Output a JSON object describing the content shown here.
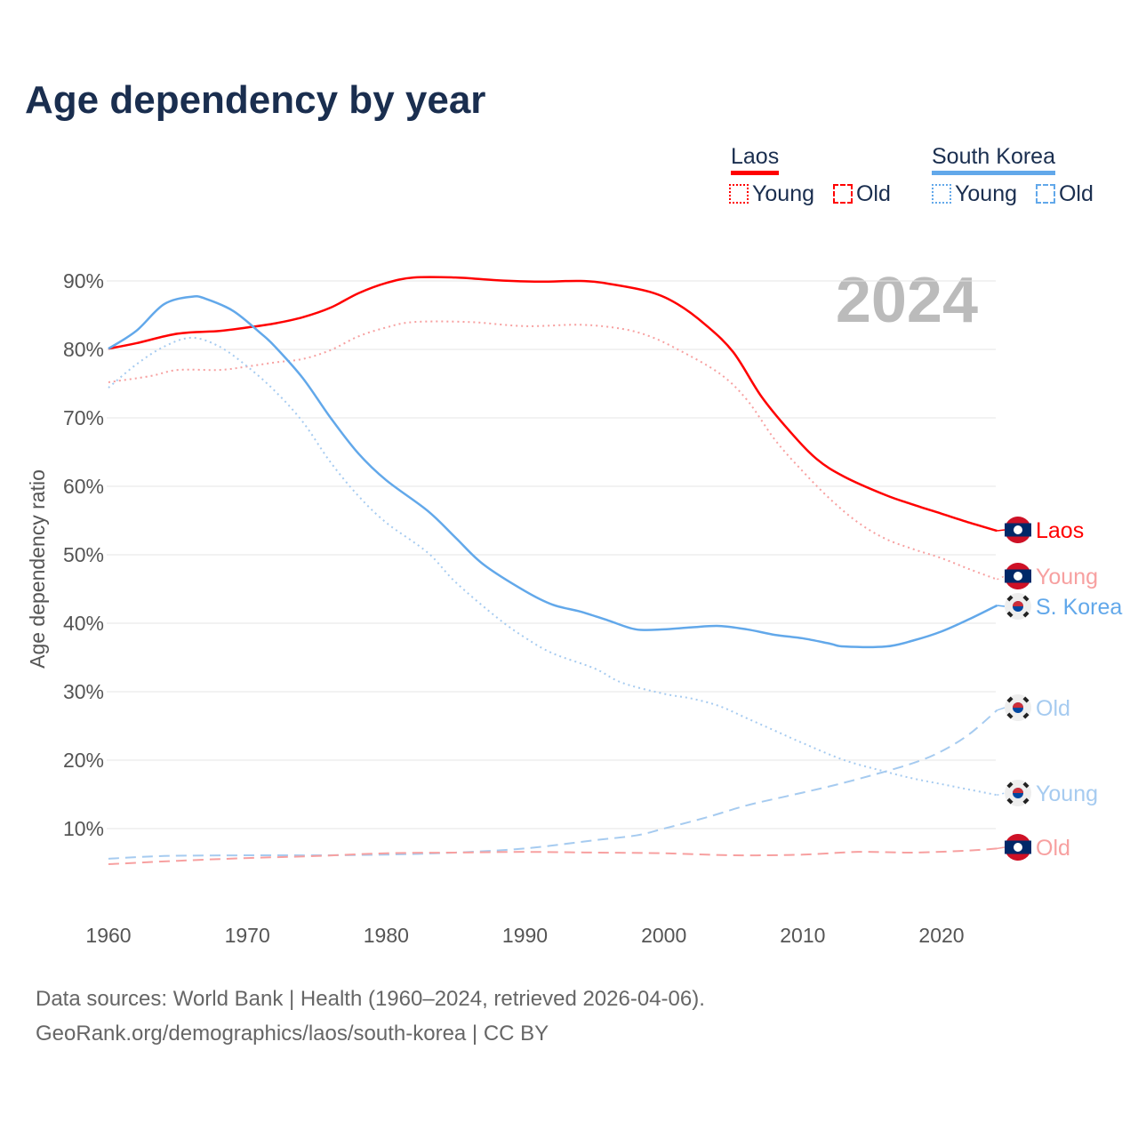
{
  "title": "Age dependency by year",
  "legend": {
    "laos": "Laos",
    "korea": "South Korea",
    "young": "Young",
    "old": "Old"
  },
  "footer": {
    "line1": "Data sources: World Bank | Health (1960–2024, retrieved 2026-04-06).",
    "line2": "GeoRank.org/demographics/laos/south-korea | CC BY"
  },
  "year_label": "2024",
  "colors": {
    "laos": "#ff0000",
    "laos_light": "#f7a0a0",
    "korea": "#62a8ea",
    "korea_light": "#a6cbf0"
  },
  "chart_data": {
    "type": "line",
    "title": "Age dependency by year",
    "xlabel": "",
    "ylabel": "Age dependency ratio",
    "xlim": [
      1960,
      2024
    ],
    "ylim": [
      0,
      90
    ],
    "xticks": [
      1960,
      1970,
      1980,
      1990,
      2000,
      2010,
      2020
    ],
    "yticks": [
      {
        "v": 10,
        "l": "10%"
      },
      {
        "v": 20,
        "l": "20%"
      },
      {
        "v": 30,
        "l": "30%"
      },
      {
        "v": 40,
        "l": "40%"
      },
      {
        "v": 50,
        "l": "50%"
      },
      {
        "v": 60,
        "l": "60%"
      },
      {
        "v": 70,
        "l": "70%"
      },
      {
        "v": 80,
        "l": "80%"
      },
      {
        "v": 90,
        "l": "90%"
      }
    ],
    "series": [
      {
        "name": "Laos",
        "end_label": "Laos",
        "color": "laos",
        "dash": "solid",
        "flag": "laos",
        "points": [
          [
            1960,
            80.1
          ],
          [
            1962,
            80.9
          ],
          [
            1965,
            82.3
          ],
          [
            1968,
            82.7
          ],
          [
            1970,
            83.2
          ],
          [
            1972,
            83.8
          ],
          [
            1974,
            84.7
          ],
          [
            1976,
            86.1
          ],
          [
            1978,
            88.2
          ],
          [
            1980,
            89.7
          ],
          [
            1982,
            90.5
          ],
          [
            1985,
            90.5
          ],
          [
            1988,
            90.1
          ],
          [
            1991,
            89.9
          ],
          [
            1994,
            90.0
          ],
          [
            1996,
            89.6
          ],
          [
            1999,
            88.4
          ],
          [
            2001,
            86.6
          ],
          [
            2003,
            83.6
          ],
          [
            2005,
            79.6
          ],
          [
            2007,
            73.2
          ],
          [
            2009,
            68.2
          ],
          [
            2011,
            64.0
          ],
          [
            2013,
            61.4
          ],
          [
            2016,
            58.7
          ],
          [
            2018,
            57.3
          ],
          [
            2020,
            56.0
          ],
          [
            2022,
            54.7
          ],
          [
            2024,
            53.5
          ]
        ]
      },
      {
        "name": "Laos Young",
        "end_label": "Young",
        "color": "laos_light",
        "dash": "dot",
        "flag": "laos",
        "points": [
          [
            1960,
            75.2
          ],
          [
            1963,
            76.1
          ],
          [
            1965,
            77.0
          ],
          [
            1968,
            77.0
          ],
          [
            1970,
            77.5
          ],
          [
            1972,
            78.1
          ],
          [
            1974,
            78.6
          ],
          [
            1976,
            79.9
          ],
          [
            1978,
            81.9
          ],
          [
            1980,
            83.2
          ],
          [
            1982,
            84.0
          ],
          [
            1986,
            84.0
          ],
          [
            1990,
            83.4
          ],
          [
            1994,
            83.6
          ],
          [
            1997,
            83.0
          ],
          [
            1999,
            81.9
          ],
          [
            2001,
            80.0
          ],
          [
            2004,
            76.5
          ],
          [
            2006,
            72.6
          ],
          [
            2008,
            66.8
          ],
          [
            2010,
            62.2
          ],
          [
            2012,
            58.1
          ],
          [
            2014,
            54.7
          ],
          [
            2016,
            52.3
          ],
          [
            2018,
            50.8
          ],
          [
            2020,
            49.5
          ],
          [
            2022,
            47.9
          ],
          [
            2024,
            46.4
          ]
        ]
      },
      {
        "name": "South Korea",
        "end_label": "S. Korea",
        "color": "korea",
        "dash": "solid",
        "flag": "korea",
        "points": [
          [
            1960,
            80.1
          ],
          [
            1962,
            82.7
          ],
          [
            1964,
            86.6
          ],
          [
            1966,
            87.7
          ],
          [
            1967,
            87.4
          ],
          [
            1969,
            85.6
          ],
          [
            1971,
            82.3
          ],
          [
            1972,
            80.4
          ],
          [
            1974,
            75.8
          ],
          [
            1976,
            70.0
          ],
          [
            1978,
            64.8
          ],
          [
            1980,
            60.9
          ],
          [
            1983,
            56.4
          ],
          [
            1985,
            52.5
          ],
          [
            1987,
            48.6
          ],
          [
            1990,
            44.7
          ],
          [
            1992,
            42.7
          ],
          [
            1994,
            41.7
          ],
          [
            1996,
            40.4
          ],
          [
            1998,
            39.1
          ],
          [
            2000,
            39.1
          ],
          [
            2002,
            39.4
          ],
          [
            2004,
            39.6
          ],
          [
            2006,
            39.1
          ],
          [
            2008,
            38.3
          ],
          [
            2010,
            37.8
          ],
          [
            2012,
            37.0
          ],
          [
            2013,
            36.6
          ],
          [
            2016,
            36.6
          ],
          [
            2018,
            37.5
          ],
          [
            2020,
            38.8
          ],
          [
            2022,
            40.6
          ],
          [
            2024,
            42.6
          ]
        ]
      },
      {
        "name": "South Korea Old",
        "end_label": "Old",
        "color": "korea_light",
        "dash": "dash",
        "flag": "korea",
        "points": [
          [
            1960,
            5.6
          ],
          [
            1964,
            6.0
          ],
          [
            1970,
            6.1
          ],
          [
            1975,
            6.1
          ],
          [
            1980,
            6.2
          ],
          [
            1985,
            6.5
          ],
          [
            1990,
            7.1
          ],
          [
            1995,
            8.3
          ],
          [
            1998,
            9.0
          ],
          [
            2000,
            10.0
          ],
          [
            2003,
            11.6
          ],
          [
            2006,
            13.4
          ],
          [
            2009,
            14.8
          ],
          [
            2012,
            16.2
          ],
          [
            2015,
            17.8
          ],
          [
            2018,
            19.6
          ],
          [
            2020,
            21.3
          ],
          [
            2022,
            23.8
          ],
          [
            2024,
            27.3
          ]
        ]
      },
      {
        "name": "South Korea Young",
        "end_label": "Young",
        "color": "korea_light",
        "dash": "dot",
        "flag": "korea",
        "points": [
          [
            1960,
            74.4
          ],
          [
            1962,
            77.8
          ],
          [
            1964,
            80.4
          ],
          [
            1966,
            81.7
          ],
          [
            1968,
            80.4
          ],
          [
            1970,
            77.5
          ],
          [
            1972,
            73.9
          ],
          [
            1974,
            69.4
          ],
          [
            1976,
            63.5
          ],
          [
            1978,
            58.6
          ],
          [
            1980,
            54.7
          ],
          [
            1983,
            50.3
          ],
          [
            1985,
            46.0
          ],
          [
            1988,
            40.8
          ],
          [
            1990,
            37.9
          ],
          [
            1992,
            35.6
          ],
          [
            1995,
            33.4
          ],
          [
            1997,
            31.3
          ],
          [
            2000,
            29.7
          ],
          [
            2002,
            29.0
          ],
          [
            2004,
            27.9
          ],
          [
            2006,
            26.1
          ],
          [
            2008,
            24.3
          ],
          [
            2010,
            22.5
          ],
          [
            2013,
            20.0
          ],
          [
            2016,
            18.3
          ],
          [
            2018,
            17.3
          ],
          [
            2020,
            16.5
          ],
          [
            2022,
            15.7
          ],
          [
            2024,
            14.9
          ]
        ]
      },
      {
        "name": "Laos Old",
        "end_label": "Old",
        "color": "laos_light",
        "dash": "dash",
        "flag": "laos",
        "points": [
          [
            1960,
            4.8
          ],
          [
            1965,
            5.3
          ],
          [
            1970,
            5.7
          ],
          [
            1975,
            6.0
          ],
          [
            1980,
            6.4
          ],
          [
            1985,
            6.5
          ],
          [
            1990,
            6.6
          ],
          [
            1995,
            6.5
          ],
          [
            2000,
            6.4
          ],
          [
            2005,
            6.1
          ],
          [
            2010,
            6.2
          ],
          [
            2014,
            6.6
          ],
          [
            2018,
            6.5
          ],
          [
            2022,
            6.8
          ],
          [
            2024,
            7.1
          ]
        ]
      }
    ]
  }
}
